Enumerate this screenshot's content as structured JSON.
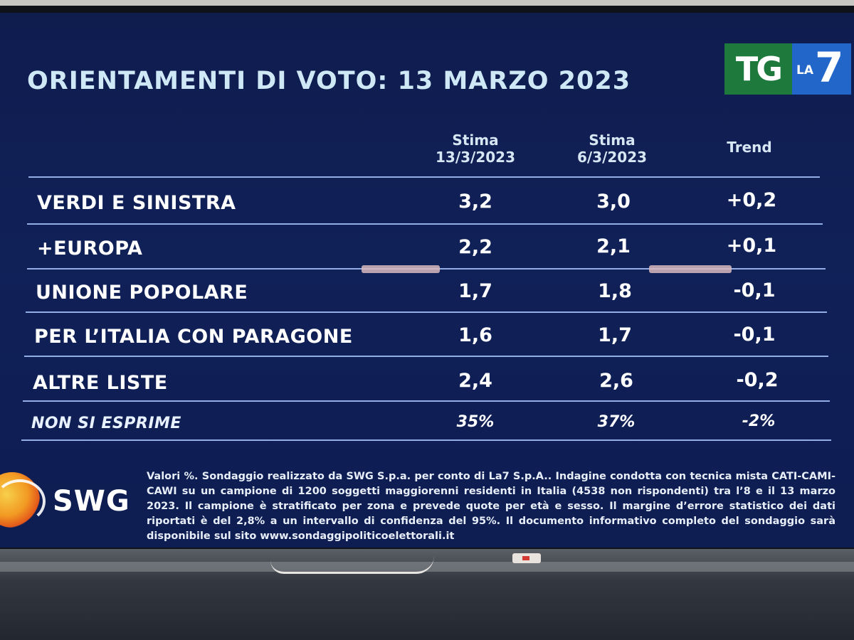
{
  "title": "ORIENTAMENTI DI VOTO: 13 MARZO 2023",
  "logo": {
    "tg": "TG",
    "la": "LA",
    "seven": "7"
  },
  "columns": {
    "stima1": {
      "line1": "Stima",
      "line2": "13/3/2023"
    },
    "stima2": {
      "line1": "Stima",
      "line2": "6/3/2023"
    },
    "trend": "Trend"
  },
  "rows": [
    {
      "label": "VERDI E SINISTRA",
      "stima1": "3,2",
      "stima2": "3,0",
      "trend": "+0,2"
    },
    {
      "label": "+EUROPA",
      "stima1": "2,2",
      "stima2": "2,1",
      "trend": "+0,1"
    },
    {
      "label": "UNIONE POPOLARE",
      "stima1": "1,7",
      "stima2": "1,8",
      "trend": "-0,1"
    },
    {
      "label": "PER L’ITALIA CON PARAGONE",
      "stima1": "1,6",
      "stima2": "1,7",
      "trend": "-0,1"
    },
    {
      "label": "ALTRE LISTE",
      "stima1": "2,4",
      "stima2": "2,6",
      "trend": "-0,2"
    }
  ],
  "non_si_esprime": {
    "label": "NON SI ESPRIME",
    "stima1": "35%",
    "stima2": "37%",
    "trend": "-2%"
  },
  "source_logo": "SWG",
  "footnote": "Valori %. Sondaggio realizzato da SWG S.p.a. per conto di La7 S.p.A.. Indagine condotta con tecnica mista CATI-CAMI-CAWI su un campione di 1200 soggetti maggiorenni residenti in Italia (4538 non rispondenti) tra l’8 e il 13 marzo 2023. Il campione è stratificato per zona e prevede quote per età e sesso. Il margine d’errore statistico dei dati riportati è del 2,8% a un intervallo di confidenza del 95%. Il documento informativo completo del sondaggio sarà disponibile sul sito www.sondaggipoliticoelettorali.it",
  "colors": {
    "background": "#102158",
    "title": "#cfe8f6",
    "rule": "#93aee4",
    "tg_green": "#1d7a3c",
    "la7_blue": "#2266c9"
  }
}
